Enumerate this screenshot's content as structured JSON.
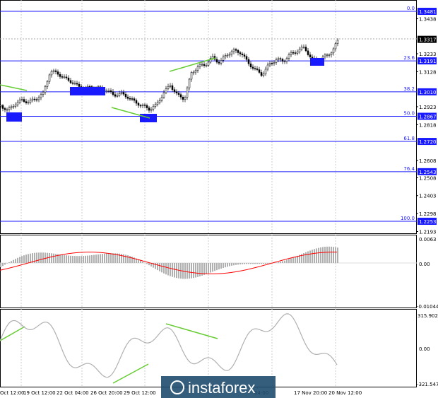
{
  "chart_data": {
    "type": "candlestick",
    "price_axis_ticks": [
      "1.3481",
      "1.3438",
      "1.3317",
      "1.3233",
      "1.3191",
      "1.3128",
      "1.3010",
      "1.2923",
      "1.2867",
      "1.2818",
      "1.2720",
      "1.2608",
      "1.2543",
      "1.2508",
      "1.2403",
      "1.2298",
      "1.2253",
      "1.2193"
    ],
    "current_price": "1.3317",
    "fibonacci_levels": [
      {
        "ratio": "0.0",
        "price": "1.3481"
      },
      {
        "ratio": "23.6",
        "price": "1.3191"
      },
      {
        "ratio": "38.2",
        "price": "1.3010"
      },
      {
        "ratio": "50.0",
        "price": "1.2867"
      },
      {
        "ratio": "61.8",
        "price": "1.2720"
      },
      {
        "ratio": "76.4",
        "price": "1.2543"
      },
      {
        "ratio": "100.0",
        "price": "1.2253"
      }
    ],
    "macd_axis": [
      "0.0063",
      "0.00",
      "-0.01044"
    ],
    "cci_axis": [
      "315.9023",
      "0.00",
      "-321.5476"
    ],
    "time_labels": [
      "Oct 12:00",
      "19 Oct 12:00",
      "22 Oct 04:00",
      "26 Oct 20:00",
      "29 Oct 12:00",
      "04:00",
      "17 Nov 20:00",
      "20 Nov 12:00"
    ]
  },
  "watermark": "instaforex",
  "colors": {
    "fib_line": "#1a1aff",
    "divergence": "#66cc33",
    "signal": "#ff0000",
    "histogram": "#b0b0b0",
    "cci": "#b0b0b0"
  }
}
